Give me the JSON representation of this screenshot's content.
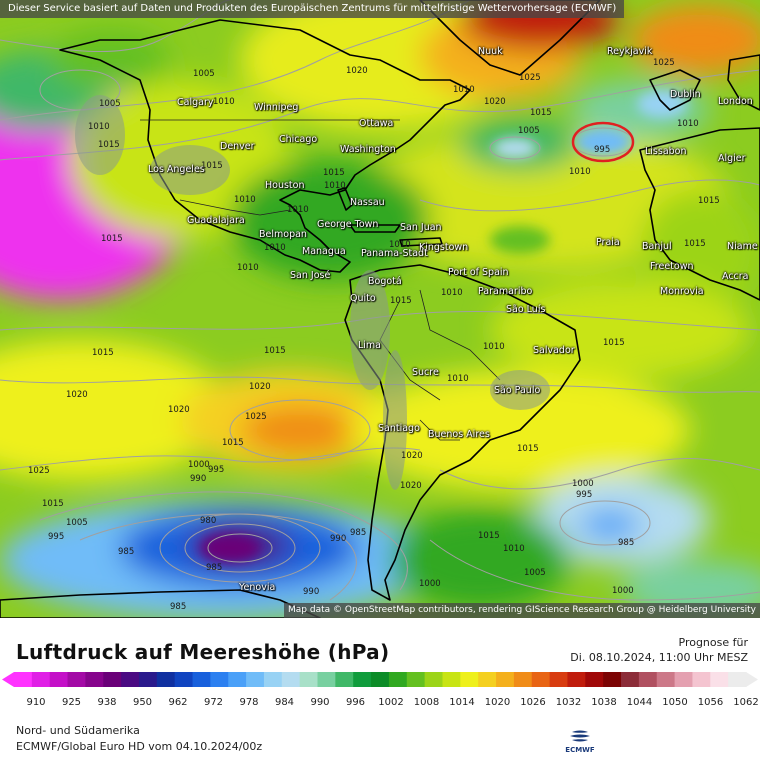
{
  "header": {
    "service_credit": "Dieser Service basiert auf Daten und Produkten des Europäischen Zentrums für mittelfristige Wettervorhersage (ECMWF)",
    "map_credit": "Map data © OpenStreetMap contributors, rendering GIScience Research Group @ Heidelberg University"
  },
  "legend": {
    "title": "Luftdruck auf Meereshöhe (hPa)",
    "forecast_label": "Prognose für",
    "forecast_date": "Di. 08.10.2024, 11:00 Uhr MESZ",
    "ticks": [
      "910",
      "925",
      "938",
      "950",
      "962",
      "972",
      "978",
      "984",
      "990",
      "996",
      "1002",
      "1008",
      "1014",
      "1020",
      "1026",
      "1032",
      "1038",
      "1044",
      "1050",
      "1056",
      "1062"
    ],
    "colors": [
      "#ff33ff",
      "#e020e6",
      "#c410c8",
      "#a30aa6",
      "#86048c",
      "#6a0078",
      "#4a0a82",
      "#2a1a8c",
      "#1030a0",
      "#1044c0",
      "#1860dc",
      "#2c80f0",
      "#4aa0f8",
      "#70bcf8",
      "#98d2f4",
      "#b4dcf0",
      "#a8e0c8",
      "#78d0a0",
      "#40b868",
      "#109c3c",
      "#0c8c28",
      "#30a820",
      "#64c020",
      "#9cd418",
      "#c8e414",
      "#eef01c",
      "#f4d020",
      "#f4b01c",
      "#f08c18",
      "#e86414",
      "#d83c10",
      "#c01c0c",
      "#a00808",
      "#7c0404",
      "#8c2c38",
      "#b05060",
      "#cc7888",
      "#e4a0b0",
      "#f4c4d0",
      "#fae0e8",
      "#ececec"
    ]
  },
  "footer": {
    "region": "Nord- und Südamerika",
    "model": "ECMWF/Global Euro HD vom  04.10.2024/00z",
    "logo_text": "ECMWF"
  },
  "cities": [
    {
      "name": "Nuuk"
    },
    {
      "name": "Reykjavik"
    },
    {
      "name": "Dublin"
    },
    {
      "name": "London"
    },
    {
      "name": "Calgary"
    },
    {
      "name": "Winnipeg"
    },
    {
      "name": "Ottawa"
    },
    {
      "name": "Chicago"
    },
    {
      "name": "Denver"
    },
    {
      "name": "Washington"
    },
    {
      "name": "Lissabon"
    },
    {
      "name": "Algier"
    },
    {
      "name": "Los Angeles"
    },
    {
      "name": "Houston"
    },
    {
      "name": "Nassau"
    },
    {
      "name": "Guadalajara"
    },
    {
      "name": "George Town"
    },
    {
      "name": "San Juan"
    },
    {
      "name": "Belmopan"
    },
    {
      "name": "Praia"
    },
    {
      "name": "Banjul"
    },
    {
      "name": "Niame"
    },
    {
      "name": "Kingstown"
    },
    {
      "name": "Managua"
    },
    {
      "name": "Panama-Stadt"
    },
    {
      "name": "Freetown"
    },
    {
      "name": "Accra"
    },
    {
      "name": "San José"
    },
    {
      "name": "Port of Spain"
    },
    {
      "name": "Bogotá"
    },
    {
      "name": "Paramaribo"
    },
    {
      "name": "Monrovia"
    },
    {
      "name": "Quito"
    },
    {
      "name": "São Luís"
    },
    {
      "name": "Lima"
    },
    {
      "name": "Salvador"
    },
    {
      "name": "Sucre"
    },
    {
      "name": "São Paulo"
    },
    {
      "name": "Santiago"
    },
    {
      "name": "Buenos Aires"
    },
    {
      "name": "Yenovia"
    }
  ],
  "isobar_labels": [
    "1005",
    "1020",
    "1025",
    "1010",
    "1005",
    "1010",
    "1015",
    "1020",
    "1025",
    "1010",
    "1005",
    "1010",
    "995",
    "1010",
    "1015",
    "1015",
    "1010",
    "1010",
    "1010",
    "1015",
    "1015",
    "1010",
    "1015",
    "1010",
    "1010",
    "1015",
    "1010",
    "1015",
    "1010",
    "1015",
    "1015",
    "1010",
    "1015",
    "1020",
    "1020",
    "1025",
    "1015",
    "1000",
    "995",
    "1025",
    "990",
    "1020",
    "1015",
    "1020",
    "1015",
    "1010",
    "1000",
    "995",
    "985",
    "1005",
    "995",
    "985",
    "985",
    "980",
    "990",
    "985",
    "990",
    "1000",
    "1005",
    "1020",
    "1000",
    "1015",
    "985"
  ]
}
